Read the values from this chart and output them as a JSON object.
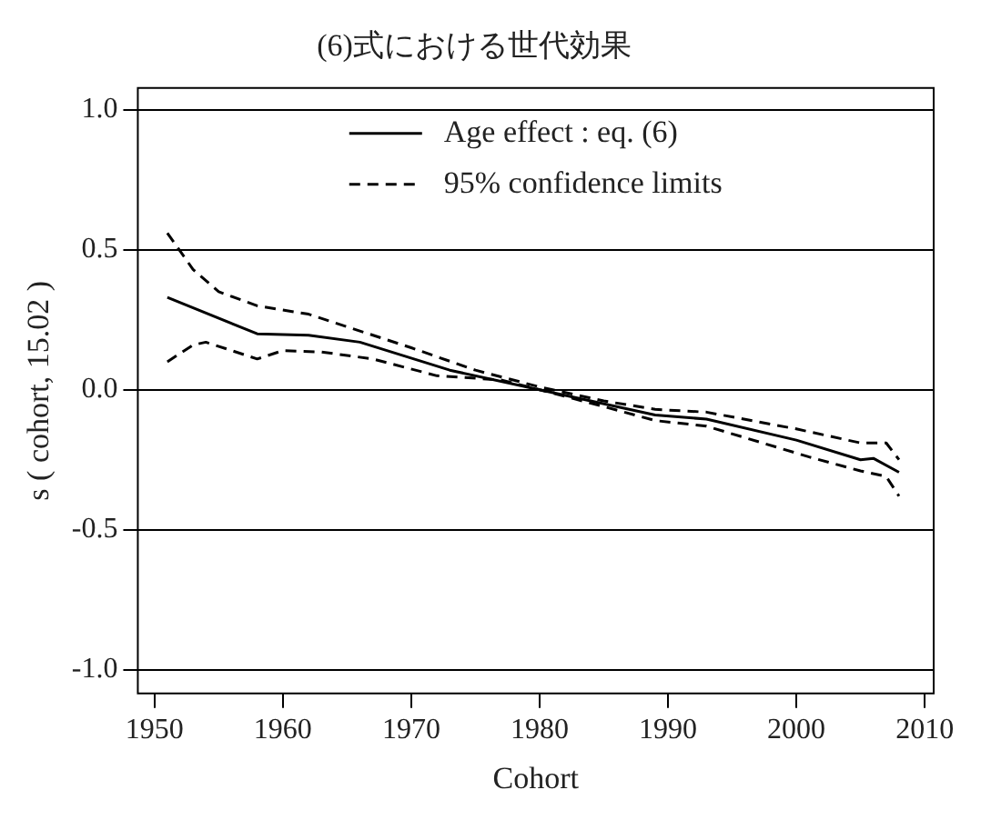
{
  "chart_data": {
    "type": "line",
    "title": "(6)式における世代効果",
    "xlabel": "Cohort",
    "ylabel": "s ( cohort, 15.02 )",
    "xlim": [
      1948.7,
      2010.7
    ],
    "xticks": [
      1950,
      1960,
      1970,
      1980,
      1990,
      2000,
      2010
    ],
    "ylim": [
      -1.085,
      1.078
    ],
    "yticks": [
      {
        "value": -1.0,
        "label": "-1.0"
      },
      {
        "value": -0.5,
        "label": "-0.5"
      },
      {
        "value": 0,
        "label": "0.0"
      },
      {
        "value": 0.5,
        "label": "0.5"
      },
      {
        "value": 1.0,
        "label": "1.0"
      }
    ],
    "grid": "y",
    "legend": "top",
    "marker": "none",
    "series": [
      {
        "name": "Age effect : eq. (6)",
        "color": "#000000",
        "line_style": "solid",
        "x": [
          1951,
          1958,
          1962,
          1966,
          1973,
          1980,
          1989,
          1993,
          2000,
          2005,
          2006,
          2008
        ],
        "values": [
          0.33,
          0.2,
          0.195,
          0.17,
          0.07,
          0.0,
          -0.09,
          -0.105,
          -0.18,
          -0.25,
          -0.245,
          -0.295
        ]
      },
      {
        "name": "95% confidence limits",
        "color": "#000000",
        "line_style": "dashed",
        "x": [
          1951,
          1953,
          1955,
          1958,
          1962,
          1966,
          1970,
          1975,
          1980,
          1985,
          1989,
          1993,
          2000,
          2005,
          2007,
          2008
        ],
        "values": [
          0.56,
          0.43,
          0.35,
          0.3,
          0.27,
          0.21,
          0.15,
          0.07,
          0.01,
          -0.04,
          -0.07,
          -0.08,
          -0.14,
          -0.19,
          -0.19,
          -0.25
        ]
      },
      {
        "color": "#000000",
        "line_style": "dashed",
        "x": [
          1951,
          1953,
          1954,
          1958,
          1960,
          1963,
          1967,
          1972,
          1977,
          1980,
          1985,
          1989,
          1993,
          2001,
          2005,
          2007,
          2008
        ],
        "values": [
          0.1,
          0.16,
          0.17,
          0.11,
          0.14,
          0.135,
          0.11,
          0.05,
          0.035,
          0.0,
          -0.06,
          -0.11,
          -0.13,
          -0.24,
          -0.29,
          -0.31,
          -0.38
        ]
      }
    ]
  }
}
